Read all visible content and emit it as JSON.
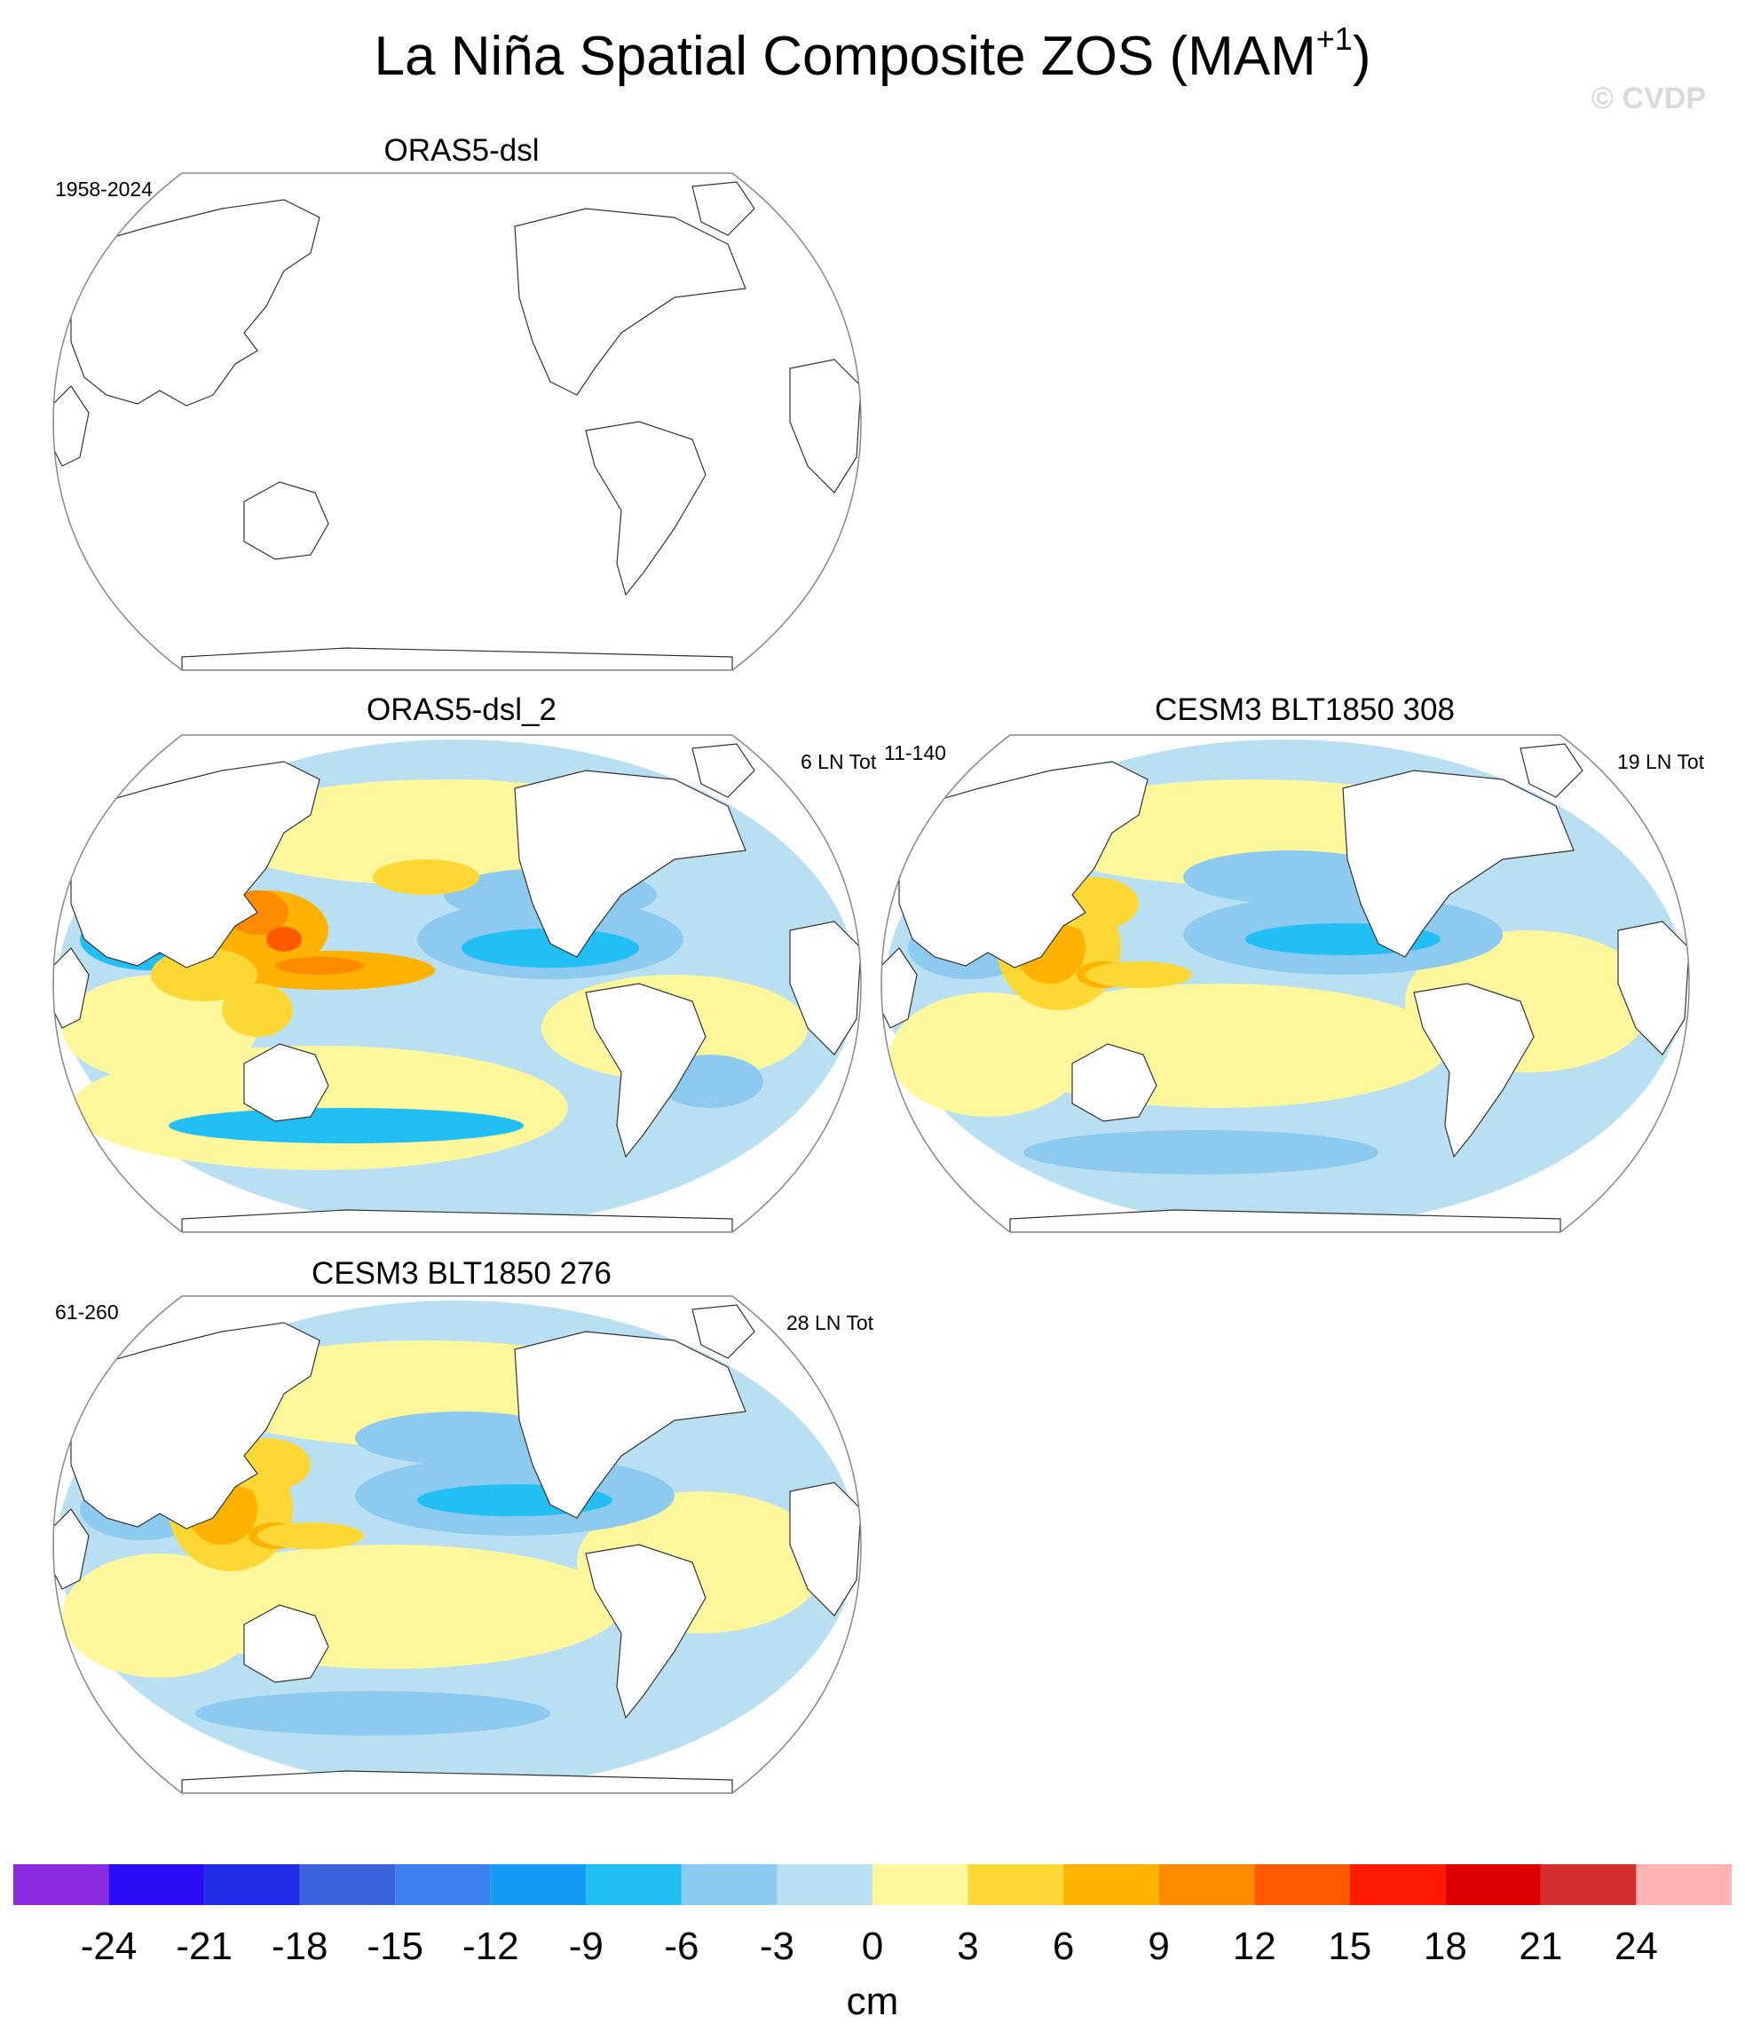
{
  "figure": {
    "title": "La Niña Spatial Composite ZOS (MAM",
    "title_superscript": "+1",
    "title_close": ")",
    "copyright": "© CVDP"
  },
  "panels": [
    {
      "title": "ORAS5-dsl",
      "left_label": "1958-2024",
      "right_label": "",
      "filled": false
    },
    {
      "title": "ORAS5-dsl_2",
      "left_label": "",
      "right_label": "6 LN Tot",
      "filled": true,
      "pattern": "obs"
    },
    {
      "title": "CESM3 BLT1850 308",
      "left_label": "11-140",
      "right_label": "19 LN Tot",
      "filled": true,
      "pattern": "model"
    },
    {
      "title": "CESM3 BLT1850 276",
      "left_label": "61-260",
      "right_label": "28 LN Tot",
      "filled": true,
      "pattern": "model"
    }
  ],
  "colorbar": {
    "units": "cm",
    "tick_labels": [
      "-24",
      "-21",
      "-18",
      "-15",
      "-12",
      "-9",
      "-6",
      "-3",
      "0",
      "3",
      "6",
      "9",
      "12",
      "15",
      "18",
      "21",
      "24"
    ],
    "colors": [
      "#8a2be2",
      "#2a0cf5",
      "#1f2ee6",
      "#3a63dd",
      "#3c7ff0",
      "#149cf5",
      "#22bff5",
      "#8ccaf0",
      "#b8e0f2",
      "#fff79c",
      "#fdd835",
      "#ffb300",
      "#ff8c00",
      "#ff5a00",
      "#ff1a00",
      "#dd0000",
      "#d32f2f",
      "#ffb3b3"
    ]
  }
}
